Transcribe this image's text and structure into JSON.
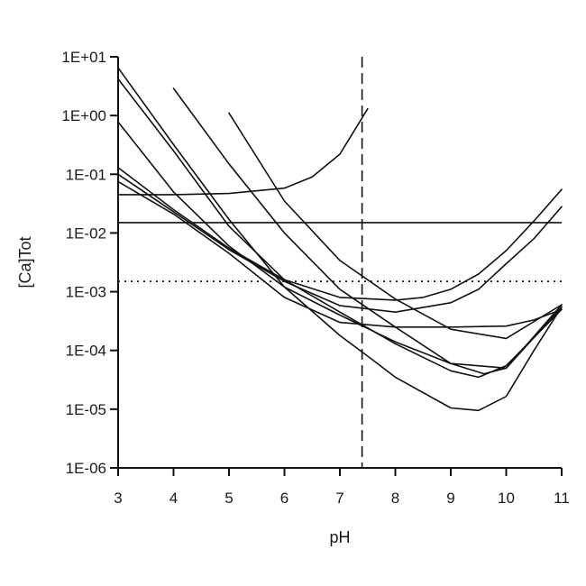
{
  "chart_data": {
    "type": "line",
    "xlabel": "pH",
    "ylabel": "[Ca]Tot",
    "xlim": [
      3,
      11
    ],
    "ylim": [
      1e-06,
      10
    ],
    "yscale": "log",
    "grid": false,
    "xticks": [
      3,
      4,
      5,
      6,
      7,
      8,
      9,
      10,
      11
    ],
    "xtick_labels": [
      "3",
      "4",
      "5",
      "6",
      "7",
      "8",
      "9",
      "10",
      "11"
    ],
    "yticks": [
      1e-06,
      1e-05,
      0.0001,
      0.001,
      0.01,
      0.1,
      1,
      10
    ],
    "ytick_labels": [
      "1E-06",
      "1E-05",
      "1E-04",
      "1E-03",
      "1E-02",
      "1E-01",
      "1E+00",
      "1E+01"
    ],
    "reference_lines": [
      {
        "orientation": "horizontal",
        "value": 0.015,
        "style": "solid"
      },
      {
        "orientation": "horizontal",
        "value": 0.0015,
        "style": "dotted"
      },
      {
        "orientation": "vertical",
        "value": 7.4,
        "style": "dashed"
      }
    ],
    "series": [
      {
        "x": [
          3,
          4,
          5,
          6,
          6.5,
          7,
          7.5
        ],
        "y": [
          0.045,
          0.045,
          0.047,
          0.058,
          0.09,
          0.22,
          1.3
        ]
      },
      {
        "x": [
          3,
          4,
          5,
          6,
          7,
          7.5,
          8,
          9,
          9.5,
          10,
          10.5,
          11
        ],
        "y": [
          6.5,
          0.32,
          0.017,
          0.0012,
          0.00018,
          8e-05,
          3.5e-05,
          1.05e-05,
          9.5e-06,
          1.65e-05,
          0.0001,
          0.00055
        ]
      },
      {
        "x": [
          3,
          4,
          5,
          6,
          7,
          8,
          9,
          9.5,
          10,
          11
        ],
        "y": [
          4.2,
          0.25,
          0.013,
          0.0016,
          0.00045,
          0.00013,
          4.5e-05,
          3.5e-05,
          5.5e-05,
          0.0005
        ]
      },
      {
        "x": [
          3,
          4,
          5,
          6,
          7,
          8,
          9,
          9.6,
          10,
          11
        ],
        "y": [
          0.78,
          0.05,
          0.006,
          0.0012,
          0.0004,
          0.00014,
          6e-05,
          4e-05,
          5e-05,
          0.00055
        ]
      },
      {
        "x": [
          4,
          5,
          6,
          7,
          8,
          9,
          10,
          11
        ],
        "y": [
          2.9,
          0.15,
          0.01,
          0.0011,
          0.00025,
          6e-05,
          5e-05,
          0.0006
        ]
      },
      {
        "x": [
          5,
          6,
          7,
          8,
          9,
          10,
          11
        ],
        "y": [
          1.1,
          0.035,
          0.0034,
          0.00075,
          0.00023,
          0.00016,
          0.0006
        ]
      },
      {
        "x": [
          3,
          4,
          5,
          6,
          7,
          8,
          8.5,
          9,
          9.5,
          10,
          10.5,
          11
        ],
        "y": [
          0.13,
          0.025,
          0.0055,
          0.0016,
          0.0008,
          0.00072,
          0.0008,
          0.0011,
          0.002,
          0.005,
          0.016,
          0.055
        ]
      },
      {
        "x": [
          3,
          4,
          5,
          6,
          7,
          8,
          9,
          9.5,
          10,
          10.5,
          11
        ],
        "y": [
          0.1,
          0.023,
          0.0052,
          0.0015,
          0.00058,
          0.00045,
          0.00065,
          0.0011,
          0.003,
          0.008,
          0.028
        ]
      },
      {
        "x": [
          3,
          4,
          5,
          6,
          7,
          8,
          9,
          10,
          10.5,
          11
        ],
        "y": [
          0.075,
          0.021,
          0.0045,
          0.0008,
          0.0003,
          0.00025,
          0.00025,
          0.00026,
          0.00033,
          0.0005
        ]
      }
    ]
  }
}
